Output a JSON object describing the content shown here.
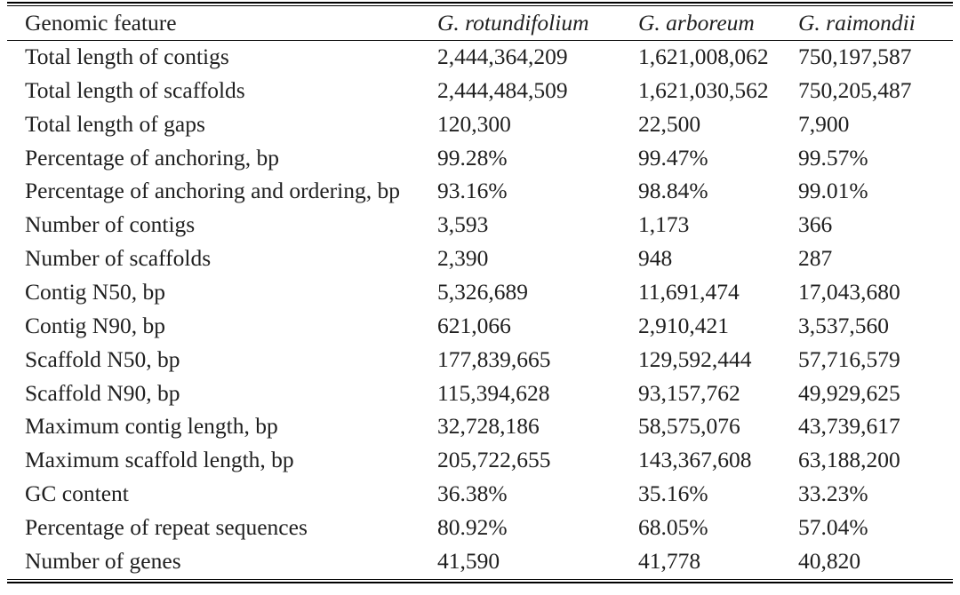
{
  "table": {
    "headers": [
      "Genomic feature",
      "G. rotundifolium",
      "G. arboreum",
      "G. raimondii"
    ],
    "rows": [
      {
        "feature": "Total length of contigs",
        "values": [
          "2,444,364,209",
          "1,621,008,062",
          "750,197,587"
        ]
      },
      {
        "feature": "Total length of scaffolds",
        "values": [
          "2,444,484,509",
          "1,621,030,562",
          "750,205,487"
        ]
      },
      {
        "feature": "Total length of gaps",
        "values": [
          "120,300",
          "22,500",
          "7,900"
        ]
      },
      {
        "feature": "Percentage of anchoring, bp",
        "values": [
          "99.28%",
          "99.47%",
          "99.57%"
        ]
      },
      {
        "feature": "Percentage of anchoring and ordering, bp",
        "values": [
          "93.16%",
          "98.84%",
          "99.01%"
        ]
      },
      {
        "feature": "Number of contigs",
        "values": [
          "3,593",
          "1,173",
          "366"
        ]
      },
      {
        "feature": "Number of scaffolds",
        "values": [
          "2,390",
          "948",
          "287"
        ]
      },
      {
        "feature": "Contig N50, bp",
        "values": [
          "5,326,689",
          "11,691,474",
          "17,043,680"
        ]
      },
      {
        "feature": "Contig N90, bp",
        "values": [
          "621,066",
          "2,910,421",
          "3,537,560"
        ]
      },
      {
        "feature": "Scaffold N50, bp",
        "values": [
          "177,839,665",
          "129,592,444",
          "57,716,579"
        ]
      },
      {
        "feature": "Scaffold N90, bp",
        "values": [
          "115,394,628",
          "93,157,762",
          "49,929,625"
        ]
      },
      {
        "feature": "Maximum contig length, bp",
        "values": [
          "32,728,186",
          "58,575,076",
          "43,739,617"
        ]
      },
      {
        "feature": "Maximum scaffold length, bp",
        "values": [
          "205,722,655",
          "143,367,608",
          "63,188,200"
        ]
      },
      {
        "feature": "GC content",
        "values": [
          "36.38%",
          "35.16%",
          "33.23%"
        ]
      },
      {
        "feature": "Percentage of repeat sequences",
        "values": [
          "80.92%",
          "68.05%",
          "57.04%"
        ]
      },
      {
        "feature": "Number of genes",
        "values": [
          "41,590",
          "41,778",
          "40,820"
        ]
      }
    ]
  },
  "colors": {
    "text": "#1f1f1f",
    "rule": "#000000",
    "background": "#ffffff"
  }
}
